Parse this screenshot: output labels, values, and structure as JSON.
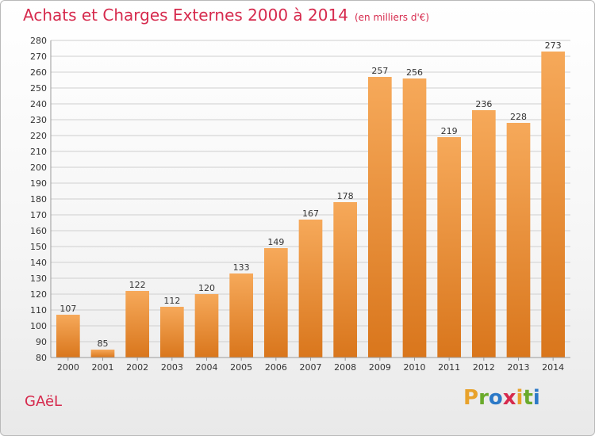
{
  "header": {
    "title": "Achats et Charges Externes 2000 à 2014",
    "unit": "(en milliers d'€)"
  },
  "footer": {
    "town": "GAëL",
    "logo_letters": [
      "P",
      "r",
      "o",
      "x",
      "i",
      "t",
      "i"
    ],
    "logo_colors": [
      "#e8a22b",
      "#6aaa2b",
      "#2c79c7",
      "#d62a4d",
      "#e8a22b",
      "#6aaa2b",
      "#2c79c7"
    ]
  },
  "chart_data": {
    "type": "bar",
    "title": "Achats et Charges Externes 2000 à 2014",
    "subtitle": "(en milliers d'€)",
    "categories": [
      "2000",
      "2001",
      "2002",
      "2003",
      "2004",
      "2005",
      "2006",
      "2007",
      "2008",
      "2009",
      "2010",
      "2011",
      "2012",
      "2013",
      "2014"
    ],
    "values": [
      107,
      85,
      122,
      112,
      120,
      133,
      149,
      167,
      178,
      257,
      256,
      219,
      236,
      228,
      273
    ],
    "value_labels": [
      "107",
      "85",
      "122",
      "112",
      "120",
      "133",
      "149",
      "167",
      "178",
      "257",
      "256",
      "219",
      "236",
      "228",
      "273"
    ],
    "ylim": [
      80,
      280
    ],
    "yticks": [
      "80",
      "90",
      "100",
      "110",
      "120",
      "130",
      "140",
      "150",
      "160",
      "170",
      "180",
      "190",
      "200",
      "210",
      "220",
      "230",
      "240",
      "250",
      "260",
      "270",
      "280"
    ],
    "grid": true,
    "colors": {
      "bar_top": "#f6a95a",
      "bar_bottom": "#d9761c",
      "grid": "#cfcfcf",
      "text": "#333333"
    }
  }
}
